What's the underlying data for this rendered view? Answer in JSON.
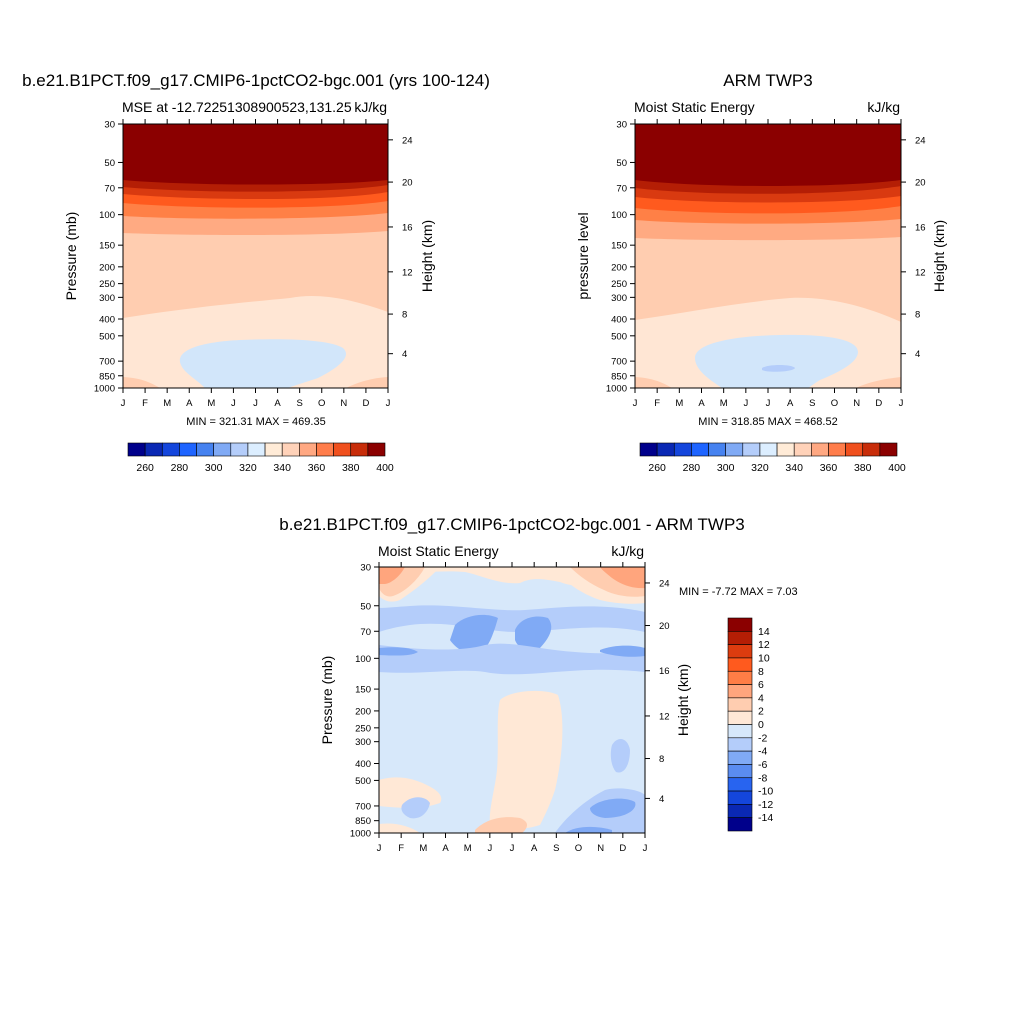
{
  "chart_data": [
    {
      "type": "heatmap",
      "title": "b.e21.B1PCT.f09_g17.CMIP6-1pctCO2-bgc.001 (yrs 100-124)",
      "subtitle_left": "MSE at -12.72251308900523,131.25",
      "subtitle_right": "kJ/kg",
      "ylabel": "Pressure (mb)",
      "ylabel_right": "Height (km)",
      "x_ticks": [
        "J",
        "F",
        "M",
        "A",
        "M",
        "J",
        "J",
        "A",
        "S",
        "O",
        "N",
        "D",
        "J"
      ],
      "y_ticks": [
        "30",
        "50",
        "70",
        "100",
        "150",
        "200",
        "250",
        "300",
        "400",
        "500",
        "700",
        "850",
        "1000"
      ],
      "height_ticks": [
        "24",
        "20",
        "16",
        "12",
        "8",
        "4"
      ],
      "minmax": "MIN = 321.31  MAX = 469.35",
      "colorbar_ticks": [
        "260",
        "280",
        "300",
        "320",
        "340",
        "360",
        "380",
        "400"
      ],
      "colors": {
        "c400": "#8b0000",
        "c390": "#b41e05",
        "c380": "#d93a10",
        "c370": "#ff5a1e",
        "c360": "#ff8046",
        "c350": "#ffaa82",
        "c340": "#ffcdb0",
        "c330": "#ffe6d4",
        "c320": "#d2e6fa"
      }
    },
    {
      "type": "heatmap",
      "title": "ARM TWP3",
      "subtitle_left": "Moist Static Energy",
      "subtitle_right": "kJ/kg",
      "ylabel": "pressure level",
      "ylabel_right": "Height (km)",
      "x_ticks": [
        "J",
        "F",
        "M",
        "A",
        "M",
        "J",
        "J",
        "A",
        "S",
        "O",
        "N",
        "D",
        "J"
      ],
      "y_ticks": [
        "30",
        "50",
        "70",
        "100",
        "150",
        "200",
        "250",
        "300",
        "400",
        "500",
        "700",
        "850",
        "1000"
      ],
      "height_ticks": [
        "24",
        "20",
        "16",
        "12",
        "8",
        "4"
      ],
      "minmax": "MIN = 318.85  MAX = 468.52",
      "colorbar_ticks": [
        "260",
        "280",
        "300",
        "320",
        "340",
        "360",
        "380",
        "400"
      ]
    },
    {
      "type": "heatmap",
      "title": "b.e21.B1PCT.f09_g17.CMIP6-1pctCO2-bgc.001 - ARM TWP3",
      "subtitle_left": "Moist Static Energy",
      "subtitle_right": "kJ/kg",
      "ylabel": "Pressure (mb)",
      "ylabel_right": "Height (km)",
      "x_ticks": [
        "J",
        "F",
        "M",
        "A",
        "M",
        "J",
        "J",
        "A",
        "S",
        "O",
        "N",
        "D",
        "J"
      ],
      "y_ticks": [
        "30",
        "50",
        "70",
        "100",
        "150",
        "200",
        "250",
        "300",
        "400",
        "500",
        "700",
        "850",
        "1000"
      ],
      "height_ticks": [
        "24",
        "20",
        "16",
        "12",
        "8",
        "4"
      ],
      "minmax": "MIN =  -7.72 MAX =   7.03",
      "colorbar_ticks": [
        "14",
        "12",
        "10",
        "8",
        "6",
        "4",
        "2",
        "0",
        "-2",
        "-4",
        "-6",
        "-8",
        "-10",
        "-12",
        "-14"
      ]
    }
  ],
  "colorbar_main": [
    "#00008b",
    "#0a28b4",
    "#1446dc",
    "#1e64ff",
    "#4682f0",
    "#80aaf5",
    "#b4cdfa",
    "#dceeff",
    "#ffebd7",
    "#ffd2b9",
    "#ffa882",
    "#ff7d4b",
    "#f0501e",
    "#c82d0a",
    "#8b0000"
  ],
  "colorbar_diff": [
    "#8b0000",
    "#b41e05",
    "#dc3c0f",
    "#ff5a1e",
    "#ff7d46",
    "#ffa57d",
    "#ffcdb0",
    "#ffe8d6",
    "#d7e8fa",
    "#b4cdfa",
    "#80aaf5",
    "#5a8cf0",
    "#2864f0",
    "#1446dc",
    "#0a28b4",
    "#00008b"
  ]
}
